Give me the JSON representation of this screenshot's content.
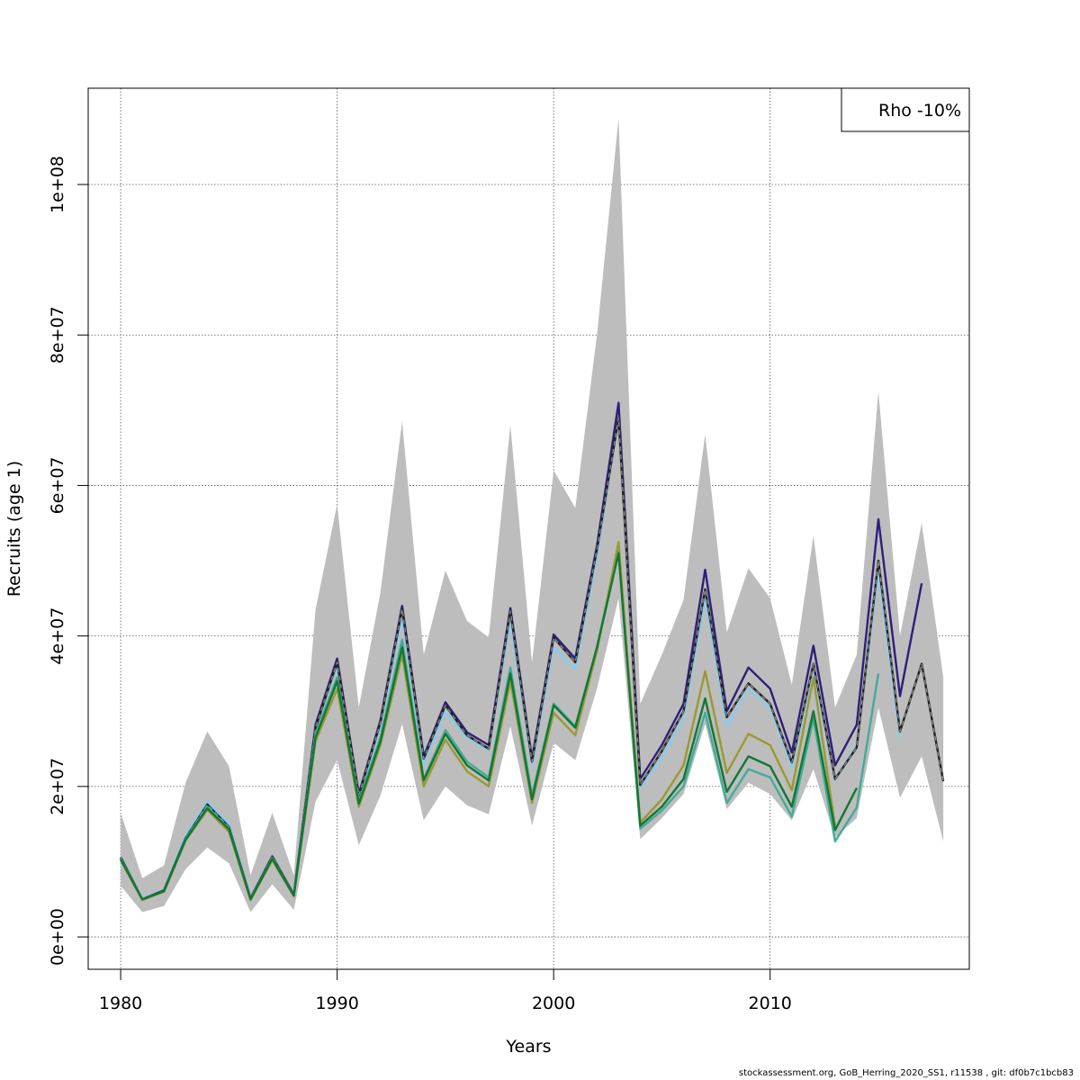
{
  "chart_data": {
    "type": "line",
    "title": "",
    "xlabel": "Years",
    "ylabel": "Recruits (age 1)",
    "xlim": [
      1978.5,
      2019.2
    ],
    "ylim": [
      -4300000,
      112800000
    ],
    "xticks": [
      1980,
      1990,
      2000,
      2010
    ],
    "xtick_labels": [
      "1980",
      "1990",
      "2000",
      "2010"
    ],
    "yticks": [
      0,
      20000000,
      40000000,
      60000000,
      80000000,
      100000000
    ],
    "ytick_labels": [
      "0e+00",
      "2e+07",
      "4e+07",
      "6e+07",
      "8e+07",
      "1e+08"
    ],
    "grid": true,
    "legend": {
      "position": "top-right",
      "text": "Rho -10%"
    },
    "band": {
      "x": [
        1980,
        1981,
        1982,
        1983,
        1984,
        1985,
        1986,
        1987,
        1988,
        1989,
        1990,
        1991,
        1992,
        1993,
        1994,
        1995,
        1996,
        1997,
        1998,
        1999,
        2000,
        2001,
        2002,
        2003,
        2004,
        2005,
        2006,
        2007,
        2008,
        2009,
        2010,
        2011,
        2012,
        2013,
        2014,
        2015,
        2016,
        2017,
        2018
      ],
      "upper": [
        16500000,
        7800000,
        9500000,
        20500000,
        27300000,
        22700000,
        8200000,
        16500000,
        8200000,
        43500000,
        57500000,
        30500000,
        45800000,
        68500000,
        37500000,
        48700000,
        42000000,
        39800000,
        68000000,
        36500000,
        62000000,
        57000000,
        80000000,
        108800000,
        31000000,
        37500000,
        44800000,
        66800000,
        40500000,
        49000000,
        45000000,
        33500000,
        53300000,
        30500000,
        37500000,
        72500000,
        40000000,
        55000000,
        34500000
      ],
      "lower": [
        6800000,
        3300000,
        4100000,
        9000000,
        11900000,
        9800000,
        3300000,
        7000000,
        3600000,
        18000000,
        23500000,
        12200000,
        18800000,
        28300000,
        15500000,
        20000000,
        17500000,
        16300000,
        28000000,
        14800000,
        25800000,
        23500000,
        33000000,
        45000000,
        13000000,
        15800000,
        19000000,
        28300000,
        17000000,
        20500000,
        19000000,
        15500000,
        22300000,
        13200000,
        15800000,
        30500000,
        18500000,
        24000000,
        12700000
      ]
    },
    "series": [
      {
        "color": "#2e1f7a",
        "dash": "",
        "x": [
          1980,
          1981,
          1982,
          1983,
          1984,
          1985,
          1986,
          1987,
          1988,
          1989,
          1990,
          1991,
          1992,
          1993,
          1994,
          1995,
          1996,
          1997,
          1998,
          1999,
          2000,
          2001,
          2002,
          2003,
          2004,
          2005,
          2006,
          2007,
          2008,
          2009,
          2010,
          2011,
          2012,
          2013,
          2014,
          2015,
          2016,
          2017
        ],
        "values": [
          10500000,
          5000000,
          6200000,
          13200000,
          17800000,
          14800000,
          5200000,
          10800000,
          5700000,
          28200000,
          37000000,
          19000000,
          28800000,
          44000000,
          24000000,
          31200000,
          27200000,
          25500000,
          43700000,
          23700000,
          40200000,
          37000000,
          52000000,
          71000000,
          21000000,
          25500000,
          31000000,
          48800000,
          30000000,
          35800000,
          33000000,
          24500000,
          38700000,
          22800000,
          28200000,
          55500000,
          32000000,
          47000000
        ]
      },
      {
        "color": "#88ccee",
        "dash": "",
        "x": [
          1980,
          1981,
          1982,
          1983,
          1984,
          1985,
          1986,
          1987,
          1988,
          1989,
          1990,
          1991,
          1992,
          1993,
          1994,
          1995,
          1996,
          1997,
          1998,
          1999,
          2000,
          2001,
          2002,
          2003,
          2004,
          2005,
          2006,
          2007,
          2008,
          2009,
          2010,
          2011,
          2012,
          2013,
          2014,
          2015,
          2016
        ],
        "values": [
          10700000,
          5100000,
          6300000,
          13500000,
          18000000,
          15000000,
          5200000,
          10800000,
          5700000,
          27800000,
          36000000,
          18500000,
          28000000,
          42500000,
          23000000,
          30000000,
          26500000,
          24800000,
          42000000,
          22800000,
          38500000,
          35500000,
          50500000,
          69000000,
          19800000,
          23800000,
          29000000,
          45000000,
          28000000,
          33000000,
          30500000,
          22500000,
          35300000,
          20800000,
          25500000,
          48500000,
          26500000
        ]
      },
      {
        "color": "#222222",
        "dash": "",
        "x": [
          1980,
          1981,
          1982,
          1983,
          1984,
          1985,
          1986,
          1987,
          1988,
          1989,
          1990,
          1991,
          1992,
          1993,
          1994,
          1995,
          1996,
          1997,
          1998,
          1999,
          2000,
          2001,
          2002,
          2003,
          2004,
          2005,
          2006,
          2007,
          2008,
          2009,
          2010,
          2011,
          2012,
          2013,
          2014,
          2015,
          2016,
          2017,
          2018
        ],
        "values": [
          10600000,
          5000000,
          6200000,
          13100000,
          17600000,
          14600000,
          5100000,
          10700000,
          5600000,
          27800000,
          36500000,
          18800000,
          28500000,
          43600000,
          23700000,
          30800000,
          26800000,
          25000000,
          43300000,
          23300000,
          39800000,
          36500000,
          51500000,
          69000000,
          20200000,
          24700000,
          30000000,
          46200000,
          29200000,
          33700000,
          31000000,
          23200000,
          36300000,
          21000000,
          25200000,
          50000000,
          27300000,
          36300000,
          20700000
        ]
      },
      {
        "color": "#888888",
        "dash": "5,4",
        "x": [
          1980,
          1981,
          1982,
          1983,
          1984,
          1985,
          1986,
          1987,
          1988,
          1989,
          1990,
          1991,
          1992,
          1993,
          1994,
          1995,
          1996,
          1997,
          1998,
          1999,
          2000,
          2001,
          2002,
          2003,
          2004,
          2005,
          2006,
          2007,
          2008,
          2009,
          2010,
          2011,
          2012,
          2013,
          2014,
          2015,
          2016,
          2017,
          2018
        ],
        "values": [
          10600000,
          5000000,
          6200000,
          13100000,
          17600000,
          14600000,
          5100000,
          10700000,
          5600000,
          27800000,
          36500000,
          18800000,
          28500000,
          43600000,
          23700000,
          30800000,
          26800000,
          25000000,
          43300000,
          23300000,
          39800000,
          36500000,
          51500000,
          69000000,
          20200000,
          24700000,
          30000000,
          46200000,
          29200000,
          33700000,
          31000000,
          23200000,
          36300000,
          21000000,
          25200000,
          50000000,
          27300000,
          36300000,
          20700000
        ]
      },
      {
        "color": "#44aa99",
        "dash": "",
        "x": [
          1980,
          1981,
          1982,
          1983,
          1984,
          1985,
          1986,
          1987,
          1988,
          1989,
          1990,
          1991,
          1992,
          1993,
          1994,
          1995,
          1996,
          1997,
          1998,
          1999,
          2000,
          2001,
          2002,
          2003,
          2004,
          2005,
          2006,
          2007,
          2008,
          2009,
          2010,
          2011,
          2012,
          2013,
          2014,
          2015
        ],
        "values": [
          10400000,
          5000000,
          6100000,
          13000000,
          17300000,
          14400000,
          5000000,
          10500000,
          5500000,
          27000000,
          34500000,
          18000000,
          26500000,
          39500000,
          21000000,
          27500000,
          23300000,
          21200000,
          35800000,
          18800000,
          31000000,
          28000000,
          38500000,
          51800000,
          14400000,
          16800000,
          20000000,
          29800000,
          17800000,
          22300000,
          21200000,
          16000000,
          29000000,
          12700000,
          17200000,
          35000000
        ]
      },
      {
        "color": "#999933",
        "dash": "",
        "x": [
          1980,
          1981,
          1982,
          1983,
          1984,
          1985,
          1986,
          1987,
          1988,
          1989,
          1990,
          1991,
          1992,
          1993,
          1994,
          1995,
          1996,
          1997,
          1998,
          1999,
          2000,
          2001,
          2002,
          2003,
          2004,
          2005,
          2006,
          2007,
          2008,
          2009,
          2010,
          2011,
          2012,
          2013
        ],
        "values": [
          10200000,
          4900000,
          6000000,
          12800000,
          16900000,
          14000000,
          4900000,
          10200000,
          5400000,
          26000000,
          33000000,
          17300000,
          25500000,
          37500000,
          20000000,
          26200000,
          22000000,
          20000000,
          34000000,
          17800000,
          29800000,
          26800000,
          38000000,
          52500000,
          15200000,
          18300000,
          22800000,
          35300000,
          21800000,
          27000000,
          25500000,
          19500000,
          34500000,
          14700000
        ]
      },
      {
        "color": "#117733",
        "dash": "",
        "x": [
          1980,
          1981,
          1982,
          1983,
          1984,
          1985,
          1986,
          1987,
          1988,
          1989,
          1990,
          1991,
          1992,
          1993,
          1994,
          1995,
          1996,
          1997,
          1998,
          1999,
          2000,
          2001,
          2002,
          2003,
          2004,
          2005,
          2006,
          2007,
          2008,
          2009,
          2010,
          2011,
          2012,
          2013,
          2014
        ],
        "values": [
          10300000,
          5000000,
          6100000,
          12900000,
          17100000,
          14300000,
          5000000,
          10400000,
          5500000,
          26500000,
          34000000,
          17700000,
          26000000,
          38500000,
          20800000,
          27000000,
          22800000,
          20800000,
          35000000,
          18300000,
          30800000,
          27800000,
          38500000,
          51000000,
          14800000,
          17300000,
          21000000,
          31700000,
          19300000,
          24000000,
          22700000,
          17300000,
          30000000,
          14200000,
          19800000
        ]
      }
    ]
  },
  "footer": {
    "text": "stockassessment.org, GoB_Herring_2020_SS1, r11538 , git: df0b7c1bcb83"
  }
}
